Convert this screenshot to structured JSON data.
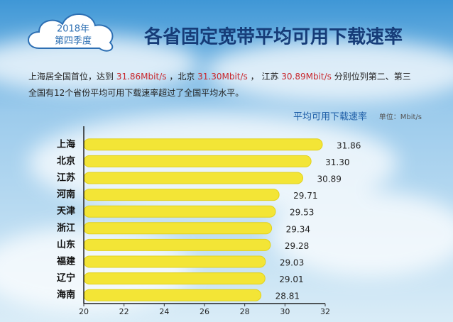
{
  "badge": {
    "line1": "2018年",
    "line2": "第四季度"
  },
  "title": "各省固定宽带平均可用下载速率",
  "description": {
    "line1": [
      "上海居全国首位，达到 ",
      "31.86Mbit/s",
      " ，北京 ",
      "31.30Mbit/s",
      " ， 江苏 ",
      "30.89Mbit/s",
      " 分别位列第二、第三"
    ],
    "line2": [
      "全国有12个省份平均可用下载速率超过了全国平均水平。"
    ],
    "highlight_color": "#c8282e"
  },
  "chart_data": {
    "type": "bar",
    "orientation": "horizontal",
    "subtitle": "平均可用下载速率",
    "unit": "单位：Mbit/s",
    "categories": [
      "上海",
      "北京",
      "江苏",
      "河南",
      "天津",
      "浙江",
      "山东",
      "福建",
      "辽宁",
      "海南"
    ],
    "values": [
      31.86,
      31.3,
      30.89,
      29.71,
      29.53,
      29.34,
      29.28,
      29.03,
      29.01,
      28.81
    ],
    "value_labels": [
      "31.86",
      "31.30",
      "30.89",
      "29.71",
      "29.53",
      "29.34",
      "29.28",
      "29.03",
      "29.01",
      "28.81"
    ],
    "color": "#f3e536",
    "xlim": [
      20,
      32
    ],
    "xticks": [
      20,
      22,
      24,
      26,
      28,
      30,
      32
    ]
  }
}
